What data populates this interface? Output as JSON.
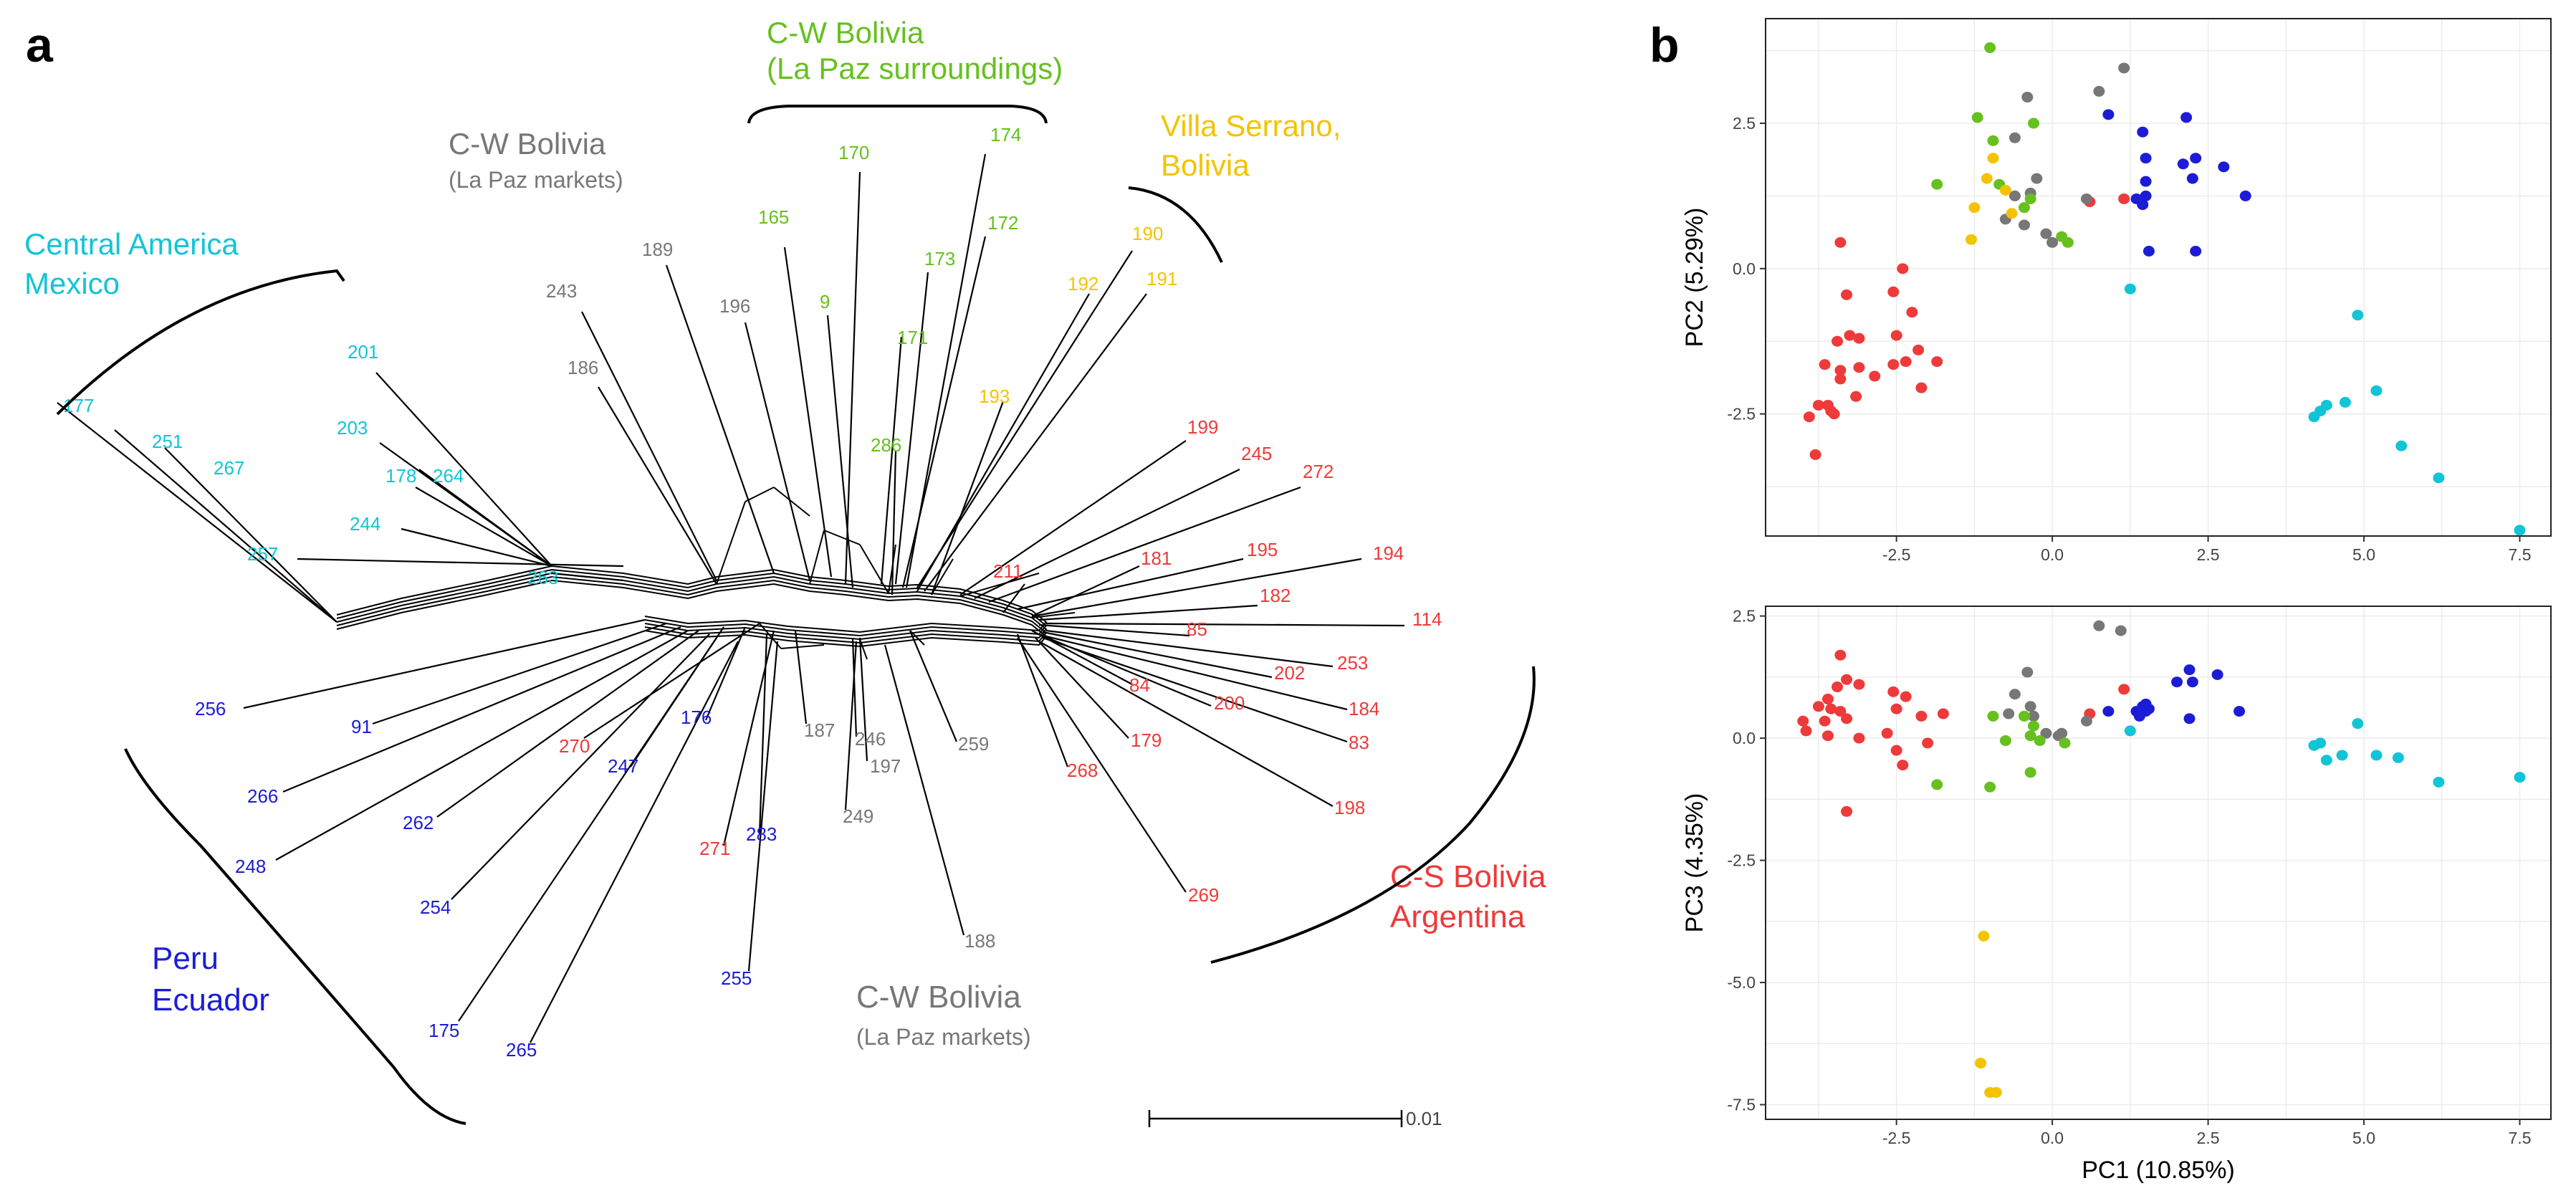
{
  "colors": {
    "central_america": "#11c5d6",
    "peru": "#1c1cd6",
    "cs_bolivia": "#ee3a3a",
    "la_paz_markets": "#777777",
    "la_paz_surroundings": "#66c01e",
    "villa_serrano": "#f4c300"
  },
  "panel_a": {
    "letter": "a",
    "scale_label": "0.01",
    "groups": [
      {
        "key": "central_america",
        "line1": "Central America",
        "line2": "Mexico"
      },
      {
        "key": "la_paz_markets_top",
        "line1": "C-W Bolivia",
        "line2": "(La Paz markets)"
      },
      {
        "key": "la_paz_surroundings",
        "line1": "C-W Bolivia",
        "line2": "(La Paz surroundings)"
      },
      {
        "key": "villa_serrano",
        "line1": "Villa Serrano,",
        "line2": "Bolivia"
      },
      {
        "key": "cs_bolivia",
        "line1": "C-S Bolivia",
        "line2": "Argentina"
      },
      {
        "key": "la_paz_markets_bottom",
        "line1": "C-W Bolivia",
        "line2": "(La Paz markets)"
      },
      {
        "key": "peru",
        "line1": "Peru",
        "line2": "Ecuador"
      }
    ],
    "leaves": [
      {
        "label": "177",
        "group": "central_america"
      },
      {
        "label": "251",
        "group": "central_america"
      },
      {
        "label": "267",
        "group": "central_america"
      },
      {
        "label": "201",
        "group": "central_america"
      },
      {
        "label": "203",
        "group": "central_america"
      },
      {
        "label": "178",
        "group": "central_america"
      },
      {
        "label": "264",
        "group": "central_america"
      },
      {
        "label": "244",
        "group": "central_america"
      },
      {
        "label": "257",
        "group": "central_america"
      },
      {
        "label": "263",
        "group": "central_america"
      },
      {
        "label": "243",
        "group": "la_paz_markets"
      },
      {
        "label": "186",
        "group": "la_paz_markets"
      },
      {
        "label": "189",
        "group": "la_paz_markets"
      },
      {
        "label": "196",
        "group": "la_paz_markets"
      },
      {
        "label": "165",
        "group": "la_paz_surroundings"
      },
      {
        "label": "170",
        "group": "la_paz_surroundings"
      },
      {
        "label": "9",
        "group": "la_paz_surroundings"
      },
      {
        "label": "171",
        "group": "la_paz_surroundings"
      },
      {
        "label": "173",
        "group": "la_paz_surroundings"
      },
      {
        "label": "172",
        "group": "la_paz_surroundings"
      },
      {
        "label": "174",
        "group": "la_paz_surroundings"
      },
      {
        "label": "286",
        "group": "la_paz_surroundings"
      },
      {
        "label": "190",
        "group": "villa_serrano"
      },
      {
        "label": "192",
        "group": "villa_serrano"
      },
      {
        "label": "191",
        "group": "villa_serrano"
      },
      {
        "label": "193",
        "group": "villa_serrano"
      },
      {
        "label": "199",
        "group": "cs_bolivia"
      },
      {
        "label": "245",
        "group": "cs_bolivia"
      },
      {
        "label": "272",
        "group": "cs_bolivia"
      },
      {
        "label": "195",
        "group": "cs_bolivia"
      },
      {
        "label": "194",
        "group": "cs_bolivia"
      },
      {
        "label": "211",
        "group": "cs_bolivia"
      },
      {
        "label": "181",
        "group": "cs_bolivia"
      },
      {
        "label": "182",
        "group": "cs_bolivia"
      },
      {
        "label": "114",
        "group": "cs_bolivia"
      },
      {
        "label": "85",
        "group": "cs_bolivia"
      },
      {
        "label": "253",
        "group": "cs_bolivia"
      },
      {
        "label": "202",
        "group": "cs_bolivia"
      },
      {
        "label": "84",
        "group": "cs_bolivia"
      },
      {
        "label": "200",
        "group": "cs_bolivia"
      },
      {
        "label": "184",
        "group": "cs_bolivia"
      },
      {
        "label": "83",
        "group": "cs_bolivia"
      },
      {
        "label": "179",
        "group": "cs_bolivia"
      },
      {
        "label": "268",
        "group": "cs_bolivia"
      },
      {
        "label": "198",
        "group": "cs_bolivia"
      },
      {
        "label": "269",
        "group": "cs_bolivia"
      },
      {
        "label": "270",
        "group": "cs_bolivia"
      },
      {
        "label": "271",
        "group": "cs_bolivia"
      },
      {
        "label": "187",
        "group": "la_paz_markets"
      },
      {
        "label": "246",
        "group": "la_paz_markets"
      },
      {
        "label": "197",
        "group": "la_paz_markets"
      },
      {
        "label": "259",
        "group": "la_paz_markets"
      },
      {
        "label": "249",
        "group": "la_paz_markets"
      },
      {
        "label": "188",
        "group": "la_paz_markets"
      },
      {
        "label": "256",
        "group": "peru"
      },
      {
        "label": "91",
        "group": "peru"
      },
      {
        "label": "266",
        "group": "peru"
      },
      {
        "label": "248",
        "group": "peru"
      },
      {
        "label": "262",
        "group": "peru"
      },
      {
        "label": "247",
        "group": "peru"
      },
      {
        "label": "176",
        "group": "peru"
      },
      {
        "label": "254",
        "group": "peru"
      },
      {
        "label": "283",
        "group": "peru"
      },
      {
        "label": "255",
        "group": "peru"
      },
      {
        "label": "175",
        "group": "peru"
      },
      {
        "label": "265",
        "group": "peru"
      }
    ]
  },
  "panel_b": {
    "letter": "b"
  },
  "chart_data": [
    {
      "type": "scatter",
      "title": "",
      "xlabel": "",
      "ylabel": "PC2 (5.29%)",
      "xlim": [
        -4.6,
        8.0
      ],
      "ylim": [
        -4.6,
        4.3
      ],
      "xticks": [
        -2.5,
        0.0,
        2.5,
        5.0,
        7.5
      ],
      "xtick_labels": [
        "-2.5",
        "0.0",
        "2.5",
        "5.0",
        "7.5"
      ],
      "yticks": [
        -2.5,
        0.0,
        2.5
      ],
      "ytick_labels": [
        "-2.5",
        "0.0",
        "2.5"
      ],
      "grid": true,
      "series": [
        {
          "name": "C-S Bolivia Argentina",
          "color_key": "cs_bolivia",
          "points": [
            [
              -3.4,
              0.45
            ],
            [
              -3.3,
              -0.45
            ],
            [
              -3.1,
              -1.2
            ],
            [
              -3.45,
              -1.25
            ],
            [
              -3.25,
              -1.15
            ],
            [
              -3.65,
              -1.65
            ],
            [
              -3.4,
              -1.75
            ],
            [
              -3.4,
              -1.9
            ],
            [
              -3.1,
              -1.7
            ],
            [
              -2.85,
              -1.85
            ],
            [
              -3.15,
              -2.2
            ],
            [
              -3.6,
              -2.35
            ],
            [
              -3.55,
              -2.45
            ],
            [
              -3.75,
              -2.35
            ],
            [
              -3.9,
              -2.55
            ],
            [
              -3.5,
              -2.5
            ],
            [
              -3.8,
              -3.2
            ],
            [
              -2.4,
              0.0
            ],
            [
              -2.55,
              -0.4
            ],
            [
              -2.25,
              -0.75
            ],
            [
              -2.5,
              -1.15
            ],
            [
              -2.35,
              -1.6
            ],
            [
              -2.55,
              -1.65
            ],
            [
              -2.15,
              -1.4
            ],
            [
              -2.1,
              -2.05
            ],
            [
              -1.85,
              -1.6
            ],
            [
              0.6,
              1.15
            ],
            [
              1.15,
              1.2
            ]
          ]
        },
        {
          "name": "C-W Bolivia (La Paz markets)",
          "color_key": "la_paz_markets",
          "points": [
            [
              -0.4,
              2.95
            ],
            [
              0.75,
              3.05
            ],
            [
              1.15,
              3.45
            ],
            [
              -0.6,
              2.25
            ],
            [
              -0.25,
              1.55
            ],
            [
              -0.35,
              1.3
            ],
            [
              -0.75,
              0.85
            ],
            [
              -0.45,
              0.75
            ],
            [
              -0.1,
              0.6
            ],
            [
              0.0,
              0.45
            ],
            [
              0.55,
              1.2
            ],
            [
              -0.6,
              1.25
            ]
          ]
        },
        {
          "name": "C-W Bolivia (La Paz surroundings)",
          "color_key": "la_paz_surroundings",
          "points": [
            [
              -1.0,
              3.8
            ],
            [
              -1.2,
              2.6
            ],
            [
              -0.3,
              2.5
            ],
            [
              -1.85,
              1.45
            ],
            [
              -0.85,
              1.45
            ],
            [
              -0.35,
              1.2
            ],
            [
              -0.45,
              1.05
            ],
            [
              0.15,
              0.55
            ],
            [
              0.25,
              0.45
            ],
            [
              -0.95,
              2.2
            ]
          ]
        },
        {
          "name": "Villa Serrano, Bolivia",
          "color_key": "villa_serrano",
          "points": [
            [
              -0.95,
              1.9
            ],
            [
              -1.05,
              1.55
            ],
            [
              -0.75,
              1.35
            ],
            [
              -1.25,
              1.05
            ],
            [
              -0.65,
              0.95
            ],
            [
              -1.3,
              0.5
            ]
          ]
        },
        {
          "name": "Peru Ecuador",
          "color_key": "peru",
          "points": [
            [
              0.9,
              2.65
            ],
            [
              1.45,
              2.35
            ],
            [
              2.15,
              2.6
            ],
            [
              1.5,
              1.9
            ],
            [
              1.5,
              1.5
            ],
            [
              1.45,
              1.1
            ],
            [
              1.5,
              1.25
            ],
            [
              1.55,
              0.3
            ],
            [
              2.1,
              1.8
            ],
            [
              2.3,
              1.9
            ],
            [
              2.25,
              1.55
            ],
            [
              2.75,
              1.75
            ],
            [
              2.3,
              0.3
            ],
            [
              3.1,
              1.25
            ],
            [
              1.35,
              1.2
            ]
          ]
        },
        {
          "name": "Central America Mexico",
          "color_key": "central_america",
          "points": [
            [
              1.25,
              -0.35
            ],
            [
              4.9,
              -0.8
            ],
            [
              5.2,
              -2.1
            ],
            [
              4.7,
              -2.3
            ],
            [
              4.4,
              -2.35
            ],
            [
              4.3,
              -2.45
            ],
            [
              4.2,
              -2.55
            ],
            [
              5.6,
              -3.05
            ],
            [
              6.2,
              -3.6
            ],
            [
              7.5,
              -4.5
            ]
          ]
        }
      ]
    },
    {
      "type": "scatter",
      "title": "",
      "xlabel": "PC1 (10.85%)",
      "ylabel": "PC3 (4.35%)",
      "xlim": [
        -4.6,
        8.0
      ],
      "ylim": [
        -7.8,
        2.7
      ],
      "xticks": [
        -2.5,
        0.0,
        2.5,
        5.0,
        7.5
      ],
      "xtick_labels": [
        "-2.5",
        "0.0",
        "2.5",
        "5.0",
        "7.5"
      ],
      "yticks": [
        -7.5,
        -5.0,
        -2.5,
        0.0,
        2.5
      ],
      "ytick_labels": [
        "-7.5",
        "-5.0",
        "-2.5",
        "0.0",
        "2.5"
      ],
      "grid": true,
      "series": [
        {
          "name": "C-S Bolivia Argentina",
          "color_key": "cs_bolivia",
          "points": [
            [
              -3.4,
              1.7
            ],
            [
              -3.3,
              1.2
            ],
            [
              -3.1,
              1.1
            ],
            [
              -3.45,
              1.05
            ],
            [
              -3.6,
              0.8
            ],
            [
              -3.55,
              0.6
            ],
            [
              -3.75,
              0.65
            ],
            [
              -3.4,
              0.55
            ],
            [
              -3.3,
              0.4
            ],
            [
              -3.65,
              0.35
            ],
            [
              -4.0,
              0.35
            ],
            [
              -3.95,
              0.15
            ],
            [
              -3.6,
              0.05
            ],
            [
              -3.1,
              0.0
            ],
            [
              -2.55,
              0.95
            ],
            [
              -2.35,
              0.85
            ],
            [
              -2.5,
              0.6
            ],
            [
              -2.65,
              0.1
            ],
            [
              -2.5,
              -0.25
            ],
            [
              -2.4,
              -0.55
            ],
            [
              -2.0,
              -0.1
            ],
            [
              -3.3,
              -1.5
            ],
            [
              -2.1,
              0.45
            ],
            [
              -1.75,
              0.5
            ],
            [
              0.6,
              0.5
            ],
            [
              1.15,
              1.0
            ]
          ]
        },
        {
          "name": "C-W Bolivia (La Paz markets)",
          "color_key": "la_paz_markets",
          "points": [
            [
              0.75,
              2.3
            ],
            [
              1.1,
              2.2
            ],
            [
              -0.4,
              1.35
            ],
            [
              -0.6,
              0.9
            ],
            [
              -0.35,
              0.65
            ],
            [
              -0.7,
              0.5
            ],
            [
              -0.3,
              0.45
            ],
            [
              -0.1,
              0.1
            ],
            [
              0.1,
              0.05
            ],
            [
              0.55,
              0.35
            ],
            [
              0.15,
              0.1
            ]
          ]
        },
        {
          "name": "C-W Bolivia (La Paz surroundings)",
          "color_key": "la_paz_surroundings",
          "points": [
            [
              -0.95,
              0.45
            ],
            [
              -0.45,
              0.45
            ],
            [
              -0.3,
              0.25
            ],
            [
              -0.35,
              0.05
            ],
            [
              -0.2,
              -0.05
            ],
            [
              0.2,
              -0.1
            ],
            [
              -0.75,
              -0.05
            ],
            [
              -0.35,
              -0.7
            ],
            [
              -1.0,
              -1.0
            ],
            [
              -1.85,
              -0.95
            ]
          ]
        },
        {
          "name": "Villa Serrano, Bolivia",
          "color_key": "villa_serrano",
          "points": [
            [
              -1.1,
              -4.05
            ],
            [
              -1.15,
              -6.65
            ],
            [
              -1.0,
              -7.25
            ],
            [
              -0.9,
              -7.25
            ]
          ]
        },
        {
          "name": "Peru Ecuador",
          "color_key": "peru",
          "points": [
            [
              0.9,
              0.55
            ],
            [
              1.35,
              0.55
            ],
            [
              1.45,
              0.65
            ],
            [
              1.5,
              0.55
            ],
            [
              1.55,
              0.6
            ],
            [
              1.4,
              0.45
            ],
            [
              2.0,
              1.15
            ],
            [
              2.2,
              1.4
            ],
            [
              2.25,
              1.15
            ],
            [
              2.65,
              1.3
            ],
            [
              2.2,
              0.4
            ],
            [
              3.0,
              0.55
            ],
            [
              1.5,
              0.7
            ]
          ]
        },
        {
          "name": "Central America Mexico",
          "color_key": "central_america",
          "points": [
            [
              1.25,
              0.15
            ],
            [
              4.2,
              -0.15
            ],
            [
              4.3,
              -0.1
            ],
            [
              4.4,
              -0.45
            ],
            [
              4.65,
              -0.35
            ],
            [
              4.9,
              0.3
            ],
            [
              5.2,
              -0.35
            ],
            [
              5.55,
              -0.4
            ],
            [
              6.2,
              -0.9
            ],
            [
              7.5,
              -0.8
            ]
          ]
        }
      ]
    }
  ]
}
